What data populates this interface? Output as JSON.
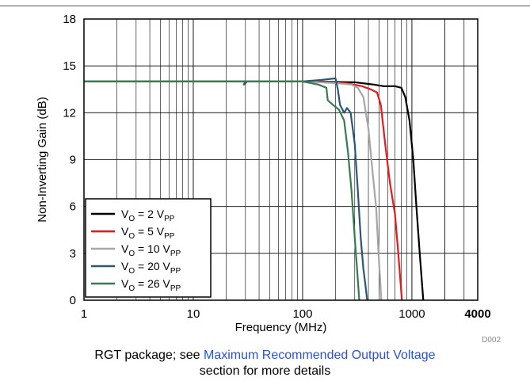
{
  "caption": {
    "prefix": "RGT package; see ",
    "link": "Maximum Recommended Output Voltage",
    "suffix": "section for more details"
  },
  "chart_data": {
    "type": "line",
    "xlabel": "Frequency (MHz)",
    "ylabel": "Non-Inverting Gain (dB)",
    "xscale": "log",
    "xlim": [
      1,
      4000
    ],
    "ylim": [
      0,
      18
    ],
    "x_ticks": [
      "1",
      "10",
      "100",
      "1000",
      "4000"
    ],
    "y_ticks": [
      "0",
      "3",
      "6",
      "9",
      "12",
      "15",
      "18"
    ],
    "grid": true,
    "legend_position": "bottom-left",
    "figure_id": "D002",
    "series": [
      {
        "name": "VO = 2 VPP",
        "label_main": "V",
        "label_sub1": "O",
        "label_mid": " = 2 V",
        "label_sub2": "PP",
        "color": "#000000",
        "points": [
          [
            1,
            14.0
          ],
          [
            10,
            14.0
          ],
          [
            100,
            14.0
          ],
          [
            300,
            13.95
          ],
          [
            450,
            13.8
          ],
          [
            550,
            13.7
          ],
          [
            700,
            13.7
          ],
          [
            800,
            13.6
          ],
          [
            870,
            13.0
          ],
          [
            950,
            11.5
          ],
          [
            1030,
            9.0
          ],
          [
            1100,
            6.0
          ],
          [
            1180,
            3.0
          ],
          [
            1240,
            1.0
          ],
          [
            1270,
            0
          ]
        ]
      },
      {
        "name": "VO = 5 VPP",
        "label_main": "V",
        "label_sub1": "O",
        "label_mid": " = 5 V",
        "label_sub2": "PP",
        "color": "#e8191e",
        "points": [
          [
            1,
            14.0
          ],
          [
            10,
            14.0
          ],
          [
            100,
            14.0
          ],
          [
            250,
            13.9
          ],
          [
            350,
            13.7
          ],
          [
            420,
            13.5
          ],
          [
            480,
            13.3
          ],
          [
            520,
            12.5
          ],
          [
            570,
            10.0
          ],
          [
            630,
            7.5
          ],
          [
            700,
            5.5
          ],
          [
            750,
            3.0
          ],
          [
            790,
            1.0
          ],
          [
            810,
            0
          ]
        ]
      },
      {
        "name": "VO = 10 VPP",
        "label_main": "V",
        "label_sub1": "O",
        "label_mid": " = 10 V",
        "label_sub2": "PP",
        "color": "#a6a6a6",
        "points": [
          [
            1,
            14.0
          ],
          [
            10,
            14.0
          ],
          [
            100,
            14.0
          ],
          [
            200,
            13.9
          ],
          [
            280,
            13.8
          ],
          [
            320,
            13.6
          ],
          [
            360,
            13.0
          ],
          [
            400,
            11.0
          ],
          [
            440,
            8.0
          ],
          [
            470,
            6.0
          ],
          [
            495,
            3.0
          ],
          [
            515,
            1.0
          ],
          [
            525,
            0
          ]
        ]
      },
      {
        "name": "VO = 20 VPP",
        "label_main": "V",
        "label_sub1": "O",
        "label_mid": " = 20 V",
        "label_sub2": "PP",
        "color": "#2b5773",
        "points": [
          [
            1,
            14.0
          ],
          [
            10,
            14.0
          ],
          [
            30,
            14.0
          ],
          [
            29,
            13.8
          ],
          [
            31,
            14.0
          ],
          [
            100,
            14.0
          ],
          [
            150,
            14.1
          ],
          [
            200,
            14.2
          ],
          [
            210,
            13.5
          ],
          [
            220,
            12.5
          ],
          [
            240,
            12.0
          ],
          [
            255,
            12.3
          ],
          [
            275,
            12.0
          ],
          [
            300,
            10.0
          ],
          [
            320,
            7.0
          ],
          [
            340,
            4.0
          ],
          [
            360,
            2.0
          ],
          [
            375,
            1.0
          ],
          [
            390,
            0
          ]
        ]
      },
      {
        "name": "VO = 26 VPP",
        "label_main": "V",
        "label_sub1": "O",
        "label_mid": " = 26 V",
        "label_sub2": "PP",
        "color": "#3a7a52",
        "points": [
          [
            1,
            14.0
          ],
          [
            10,
            14.0
          ],
          [
            50,
            14.0
          ],
          [
            100,
            14.0
          ],
          [
            140,
            13.8
          ],
          [
            165,
            13.6
          ],
          [
            170,
            12.8
          ],
          [
            190,
            12.5
          ],
          [
            215,
            12.2
          ],
          [
            240,
            11.5
          ],
          [
            260,
            9.5
          ],
          [
            280,
            7.0
          ],
          [
            300,
            4.0
          ],
          [
            315,
            2.0
          ],
          [
            330,
            0
          ]
        ]
      }
    ]
  }
}
